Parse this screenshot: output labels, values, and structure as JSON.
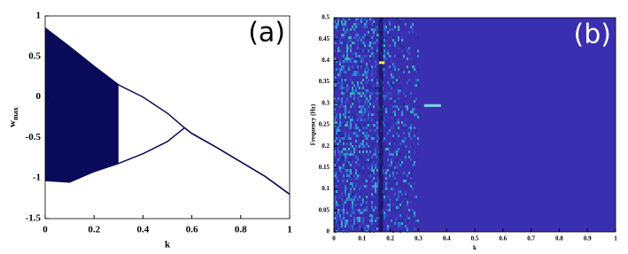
{
  "chart_data": [
    {
      "type": "bifurcation",
      "title": "(a)",
      "xlabel": "k",
      "ylabel": "w",
      "ylabel_sub": "max",
      "x": [
        0,
        0.1,
        0.2,
        0.3,
        0.4,
        0.5,
        0.57,
        0.6,
        0.7,
        0.8,
        0.9,
        1
      ],
      "series": [
        {
          "color": "#0a0a5a",
          "values": [
            0.85,
            0.62,
            0.38,
            0.15,
            0.0,
            -0.2,
            -0.38,
            -0.45,
            -0.62,
            -0.8,
            -0.98,
            -1.2
          ]
        },
        {
          "color": "#0a0a5a",
          "values": [
            -1.03,
            -1.05,
            -0.92,
            -0.82,
            -0.7,
            -0.55,
            -0.38,
            -0.45,
            -0.62,
            -0.8,
            -0.98,
            -1.2
          ]
        }
      ],
      "xlim": [
        0,
        1
      ],
      "ylim": [
        -1.5,
        1
      ],
      "xticks": [
        0,
        0.2,
        0.4,
        0.6,
        0.8,
        1
      ],
      "yticks": [
        -1.5,
        -1,
        -0.5,
        0,
        0.5,
        1
      ]
    },
    {
      "type": "spectrogram",
      "title": "(b)",
      "xlabel": "k",
      "ylabel": "Frequency (Hz)",
      "background": "#3a2fb0",
      "series": [
        {
          "color": "#f4f020",
          "x": [
            0.16,
            0.18
          ],
          "values": [
            0.395,
            0.395
          ]
        },
        {
          "color": "#7fd8e8",
          "x": [
            0.32,
            0.38
          ],
          "values": [
            0.295,
            0.295
          ]
        }
      ],
      "xlim": [
        0,
        1
      ],
      "ylim": [
        0,
        0.5
      ],
      "xticks": [
        0,
        0.1,
        0.2,
        0.3,
        0.4,
        0.5,
        0.6,
        0.7,
        0.8,
        0.9,
        1
      ],
      "yticks": [
        0,
        0.05,
        0.1,
        0.15,
        0.2,
        0.25,
        0.3,
        0.35,
        0.4,
        0.45,
        0.5
      ]
    }
  ]
}
